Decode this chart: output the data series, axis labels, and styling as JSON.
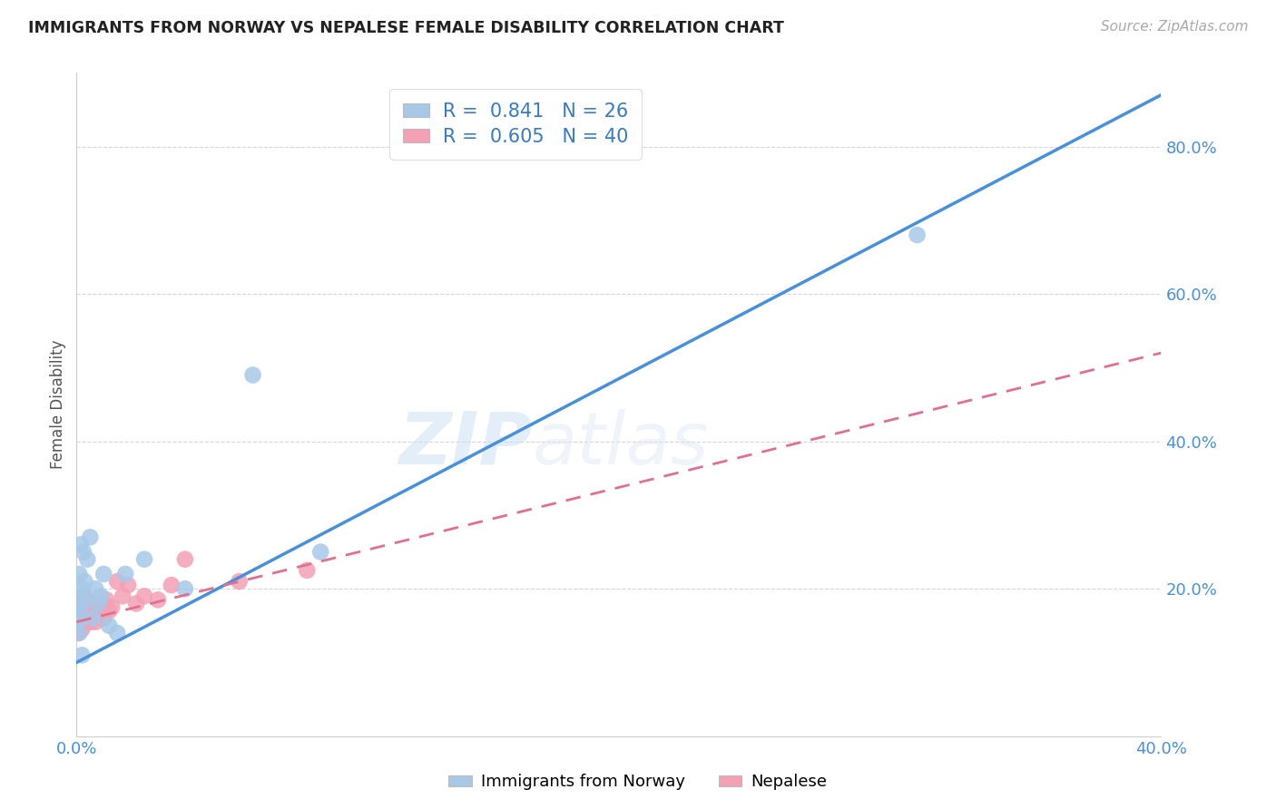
{
  "title": "IMMIGRANTS FROM NORWAY VS NEPALESE FEMALE DISABILITY CORRELATION CHART",
  "source": "Source: ZipAtlas.com",
  "ylabel_label": "Female Disability",
  "x_min": 0.0,
  "x_max": 0.4,
  "y_min": 0.0,
  "y_max": 0.9,
  "x_ticks": [
    0.0,
    0.1,
    0.2,
    0.3,
    0.4
  ],
  "x_tick_labels": [
    "0.0%",
    "",
    "",
    "",
    "40.0%"
  ],
  "y_ticks": [
    0.2,
    0.4,
    0.6,
    0.8
  ],
  "y_tick_labels": [
    "20.0%",
    "40.0%",
    "60.0%",
    "80.0%"
  ],
  "norway_R": 0.841,
  "norway_N": 26,
  "nepal_R": 0.605,
  "nepal_N": 40,
  "norway_color": "#a8c8e8",
  "nepal_color": "#f4a0b5",
  "norway_line_color": "#4a90d9",
  "nepal_line_color": "#e07090",
  "watermark_zip": "ZIP",
  "watermark_atlas": "atlas",
  "legend_label_norway": "Immigrants from Norway",
  "legend_label_nepal": "Nepalese",
  "norway_line_x0": 0.0,
  "norway_line_y0": 0.1,
  "norway_line_x1": 0.4,
  "norway_line_y1": 0.87,
  "nepal_line_x0": 0.0,
  "nepal_line_y0": 0.155,
  "nepal_line_x1": 0.4,
  "nepal_line_y1": 0.52,
  "norway_points_x": [
    0.0005,
    0.001,
    0.001,
    0.001,
    0.0015,
    0.002,
    0.002,
    0.0025,
    0.003,
    0.003,
    0.004,
    0.005,
    0.006,
    0.007,
    0.008,
    0.009,
    0.01,
    0.012,
    0.015,
    0.018,
    0.025,
    0.04,
    0.065,
    0.09,
    0.31,
    0.002
  ],
  "norway_points_y": [
    0.155,
    0.14,
    0.17,
    0.22,
    0.26,
    0.2,
    0.18,
    0.25,
    0.19,
    0.21,
    0.24,
    0.27,
    0.16,
    0.2,
    0.18,
    0.19,
    0.22,
    0.15,
    0.14,
    0.22,
    0.24,
    0.2,
    0.49,
    0.25,
    0.68,
    0.11
  ],
  "nepal_points_x": [
    0.0003,
    0.0005,
    0.001,
    0.001,
    0.001,
    0.0015,
    0.0015,
    0.002,
    0.002,
    0.002,
    0.002,
    0.003,
    0.003,
    0.003,
    0.004,
    0.004,
    0.005,
    0.005,
    0.006,
    0.006,
    0.007,
    0.007,
    0.008,
    0.008,
    0.009,
    0.01,
    0.01,
    0.011,
    0.012,
    0.013,
    0.015,
    0.017,
    0.019,
    0.022,
    0.025,
    0.03,
    0.035,
    0.04,
    0.06,
    0.085
  ],
  "nepal_points_y": [
    0.155,
    0.14,
    0.145,
    0.16,
    0.175,
    0.15,
    0.17,
    0.145,
    0.16,
    0.175,
    0.19,
    0.155,
    0.17,
    0.185,
    0.16,
    0.175,
    0.155,
    0.17,
    0.165,
    0.18,
    0.155,
    0.17,
    0.165,
    0.18,
    0.17,
    0.16,
    0.175,
    0.185,
    0.17,
    0.175,
    0.21,
    0.19,
    0.205,
    0.18,
    0.19,
    0.185,
    0.205,
    0.24,
    0.21,
    0.225
  ]
}
